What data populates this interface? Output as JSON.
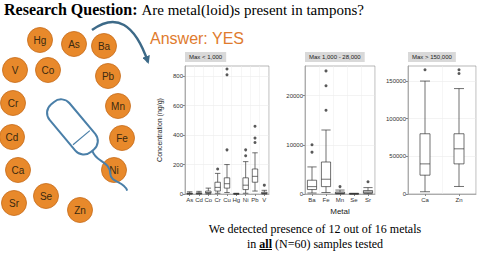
{
  "research_question": {
    "label": "Research Question:",
    "text": "Are metal(loid)s present in tampons?"
  },
  "answer": "Answer: YES",
  "metals": [
    "Hg",
    "As",
    "V",
    "Co",
    "Pb",
    "Mn",
    "Fe",
    "Ni",
    "Cr",
    "Cd",
    "Ca",
    "Se",
    "Zn",
    "Sr",
    "Ba"
  ],
  "chart_data": [
    {
      "type": "boxplot",
      "title": "Max < 1,000",
      "y_label": "Concentration (ng/g)",
      "categories": [
        "As",
        "Cd",
        "Co",
        "Cr",
        "Cu",
        "Hg",
        "Ni",
        "Pb",
        "V"
      ],
      "boxes": [
        [
          0,
          1,
          3,
          6,
          15
        ],
        [
          0,
          2,
          4,
          8,
          18
        ],
        [
          0,
          5,
          10,
          20,
          40
        ],
        [
          5,
          20,
          45,
          80,
          140
        ],
        [
          10,
          40,
          70,
          110,
          200
        ],
        [
          0,
          0,
          1,
          2,
          5
        ],
        [
          5,
          30,
          60,
          110,
          220
        ],
        [
          20,
          80,
          120,
          170,
          280
        ],
        [
          0,
          3,
          6,
          12,
          25
        ]
      ],
      "outliers": [
        {
          "category": "Cu",
          "value": 810
        },
        {
          "category": "Cu",
          "value": 850
        },
        {
          "category": "Cu",
          "value": 300
        },
        {
          "category": "Pb",
          "value": 460
        },
        {
          "category": "Pb",
          "value": 380
        },
        {
          "category": "Pb",
          "value": 350
        },
        {
          "category": "Ni",
          "value": 260
        },
        {
          "category": "Ni",
          "value": 300
        },
        {
          "category": "Cr",
          "value": 170
        },
        {
          "category": "V",
          "value": 60
        }
      ],
      "ylim": [
        0,
        870
      ],
      "yticks": [
        0,
        200,
        400,
        600,
        800
      ],
      "grid": true
    },
    {
      "type": "boxplot",
      "title": "Max 1,000 - 28,000",
      "x_label": "Metal",
      "categories": [
        "Ba",
        "Fe",
        "Mn",
        "Se",
        "Sr"
      ],
      "boxes": [
        [
          200,
          900,
          1500,
          2800,
          5500
        ],
        [
          300,
          1500,
          3000,
          6500,
          13000
        ],
        [
          20,
          100,
          200,
          400,
          800
        ],
        [
          0,
          10,
          40,
          80,
          150
        ],
        [
          50,
          200,
          400,
          700,
          1300
        ]
      ],
      "outliers": [
        {
          "category": "Fe",
          "value": 17000
        },
        {
          "category": "Fe",
          "value": 22000
        },
        {
          "category": "Fe",
          "value": 25000
        },
        {
          "category": "Ba",
          "value": 8500
        },
        {
          "category": "Ba",
          "value": 10000
        },
        {
          "category": "Mn",
          "value": 1500
        },
        {
          "category": "Sr",
          "value": 2500
        }
      ],
      "ylim": [
        0,
        26000
      ],
      "yticks": [
        0,
        10000,
        20000
      ],
      "grid": true
    },
    {
      "type": "boxplot",
      "title": "Max > 150,000",
      "categories": [
        "Ca",
        "Zn"
      ],
      "boxes": [
        [
          3000,
          25000,
          40000,
          80000,
          150000
        ],
        [
          10000,
          40000,
          60000,
          80000,
          140000
        ]
      ],
      "outliers": [
        {
          "category": "Ca",
          "value": 165000
        },
        {
          "category": "Zn",
          "value": 165000
        },
        {
          "category": "Zn",
          "value": 160000
        }
      ],
      "ylim": [
        0,
        170000
      ],
      "yticks": [
        0,
        50000,
        100000,
        150000
      ],
      "grid": true
    }
  ],
  "caption": [
    [
      {
        "text": "We detected presence of 12 out of 16 metals",
        "bold": false
      }
    ],
    [
      {
        "text": "in ",
        "bold": false
      },
      {
        "text": "all",
        "bold": true
      },
      {
        "text": " (N=60) samples tested",
        "bold": false
      }
    ]
  ]
}
